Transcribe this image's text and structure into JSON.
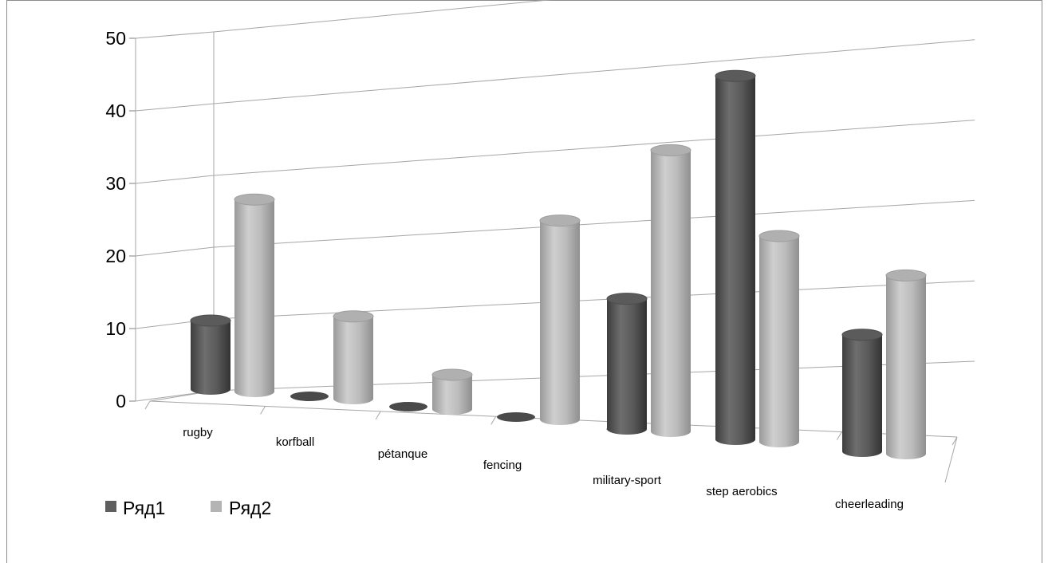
{
  "chart_data": {
    "type": "bar",
    "style": "3d-cylinder",
    "categories": [
      "rugby",
      "korfball",
      "pétanque",
      "fencing",
      "military-sport",
      "step aerobics",
      "cheerleading"
    ],
    "series": [
      {
        "name": "Ряд1",
        "color": "#5f5f5f",
        "values": [
          10,
          0,
          0,
          0,
          19,
          53,
          17
        ]
      },
      {
        "name": "Ряд2",
        "color": "#b4b4b4",
        "values": [
          28,
          12,
          5,
          29,
          41,
          30,
          26
        ]
      }
    ],
    "y_ticks": [
      "0",
      "10",
      "20",
      "30",
      "40",
      "50"
    ],
    "ylim": [
      0,
      50
    ],
    "grid": true,
    "legend_position": "bottom-left"
  }
}
